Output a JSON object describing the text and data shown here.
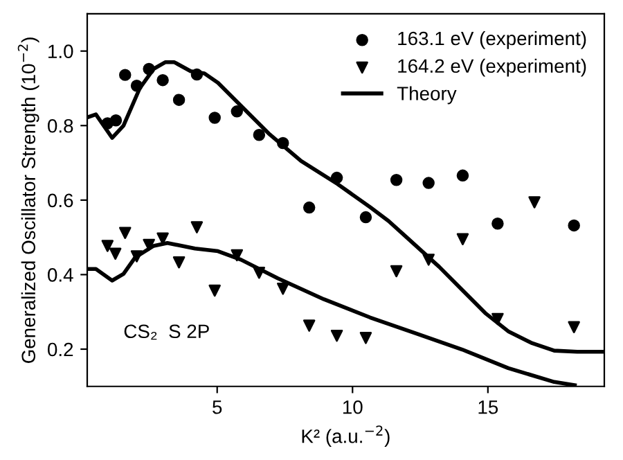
{
  "chart_data": {
    "type": "scatter",
    "xlabel": "K² (a.u.$^{−2}$)",
    "ylabel": "Generalized Oscillator Strength (10$^{−2}$)",
    "xlim": [
      0.2,
      19.3
    ],
    "ylim": [
      0.1,
      1.1
    ],
    "xticks": [
      5,
      10,
      15
    ],
    "yticks": [
      {
        "value": 0.2,
        "label": "0.2"
      },
      {
        "value": 0.4,
        "label": "0.4"
      },
      {
        "value": 0.6,
        "label": "0.6"
      },
      {
        "value": 0.8,
        "label": "0.8"
      },
      {
        "value": 1.0,
        "label": "1.0"
      }
    ],
    "grid": false,
    "legend": "top right",
    "annotations": [
      "CS₂  S 2P"
    ],
    "series": [
      {
        "name": "163.1 eV (experiment)",
        "marker": "circle",
        "color": "#000000",
        "x": [
          0.95,
          1.26,
          1.6,
          2.03,
          2.48,
          2.99,
          3.59,
          4.25,
          4.91,
          5.73,
          6.55,
          7.43,
          8.4,
          9.42,
          10.49,
          11.62,
          12.81,
          14.07,
          15.36,
          18.18
        ],
        "values": [
          0.806,
          0.814,
          0.936,
          0.907,
          0.952,
          0.922,
          0.869,
          0.937,
          0.821,
          0.838,
          0.775,
          0.753,
          0.58,
          0.66,
          0.554,
          0.654,
          0.646,
          0.666,
          0.537,
          0.532
        ]
      },
      {
        "name": "164.2 eV (experiment)",
        "marker": "triangle",
        "color": "#000000",
        "x": [
          0.95,
          1.24,
          1.6,
          2.03,
          2.48,
          2.99,
          3.59,
          4.25,
          4.91,
          5.73,
          6.55,
          7.43,
          8.4,
          9.42,
          10.49,
          11.62,
          12.81,
          14.07,
          15.36,
          16.72,
          18.18
        ],
        "values": [
          0.477,
          0.456,
          0.512,
          0.449,
          0.48,
          0.497,
          0.433,
          0.527,
          0.357,
          0.452,
          0.405,
          0.362,
          0.263,
          0.236,
          0.23,
          0.409,
          0.44,
          0.495,
          0.281,
          0.594,
          0.259
        ]
      },
      {
        "name": "Theory",
        "type": "line",
        "marker": "none",
        "color": "#000000",
        "x": [
          0.2,
          0.52,
          1.12,
          1.54,
          2.14,
          2.65,
          3.08,
          3.42,
          4.02,
          4.53,
          5.03,
          5.88,
          6.9,
          8.1,
          9.45,
          10.65,
          11.33,
          12.0,
          13.2,
          14.05,
          14.9,
          15.75,
          16.6,
          17.45,
          18.3,
          19.3
        ],
        "values": [
          0.822,
          0.83,
          0.767,
          0.8,
          0.9,
          0.952,
          0.97,
          0.97,
          0.946,
          0.94,
          0.915,
          0.853,
          0.779,
          0.705,
          0.643,
          0.581,
          0.544,
          0.5,
          0.421,
          0.359,
          0.297,
          0.248,
          0.217,
          0.196,
          0.193,
          0.193
        ]
      },
      {
        "type": "line",
        "marker": "none",
        "color": "#000000",
        "x": [
          0.2,
          0.52,
          1.12,
          1.54,
          1.97,
          2.65,
          3.16,
          4.18,
          5.03,
          5.88,
          7.24,
          8.94,
          10.65,
          12.35,
          14.05,
          15.75,
          17.45,
          18.21
        ],
        "values": [
          0.415,
          0.415,
          0.384,
          0.402,
          0.446,
          0.477,
          0.485,
          0.47,
          0.463,
          0.44,
          0.39,
          0.334,
          0.285,
          0.242,
          0.199,
          0.149,
          0.112,
          0.103
        ]
      }
    ]
  }
}
